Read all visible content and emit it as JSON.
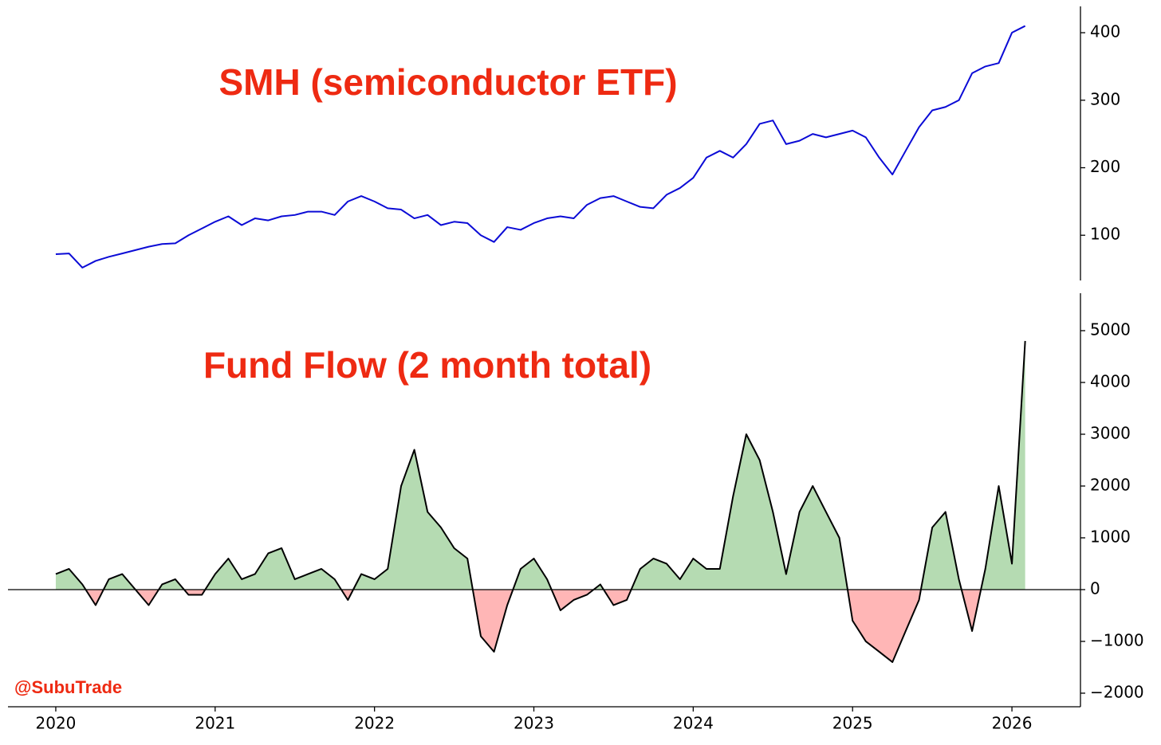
{
  "chart_data": [
    {
      "type": "line",
      "title": "SMH (semiconductor ETF)",
      "color": "#0b0bd6",
      "x": [
        2020,
        2020.083,
        2020.167,
        2020.25,
        2020.333,
        2020.417,
        2020.5,
        2020.583,
        2020.667,
        2020.75,
        2020.833,
        2020.917,
        2021,
        2021.083,
        2021.167,
        2021.25,
        2021.333,
        2021.417,
        2021.5,
        2021.583,
        2021.667,
        2021.75,
        2021.833,
        2021.917,
        2022,
        2022.083,
        2022.167,
        2022.25,
        2022.333,
        2022.417,
        2022.5,
        2022.583,
        2022.667,
        2022.75,
        2022.833,
        2022.917,
        2023,
        2023.083,
        2023.167,
        2023.25,
        2023.333,
        2023.417,
        2023.5,
        2023.583,
        2023.667,
        2023.75,
        2023.833,
        2023.917,
        2024,
        2024.083,
        2024.167,
        2024.25,
        2024.333,
        2024.417,
        2024.5,
        2024.583,
        2024.667,
        2024.75,
        2024.833,
        2024.917,
        2025,
        2025.083,
        2025.167,
        2025.25,
        2025.333,
        2025.417,
        2025.5,
        2025.583,
        2025.667,
        2025.75,
        2025.833,
        2025.917,
        2026,
        2026.083
      ],
      "values": [
        72,
        73,
        52,
        62,
        68,
        73,
        78,
        83,
        87,
        88,
        100,
        110,
        120,
        128,
        115,
        125,
        122,
        128,
        130,
        135,
        135,
        130,
        150,
        158,
        150,
        140,
        138,
        125,
        130,
        115,
        120,
        118,
        100,
        90,
        112,
        108,
        118,
        125,
        128,
        125,
        145,
        155,
        158,
        150,
        142,
        140,
        160,
        170,
        185,
        215,
        225,
        215,
        235,
        265,
        270,
        235,
        240,
        250,
        245,
        250,
        255,
        245,
        215,
        190,
        225,
        260,
        285,
        290,
        300,
        340,
        350,
        355,
        400,
        410
      ],
      "xlim": [
        2019.7,
        2026.43
      ],
      "ylim": [
        33,
        439
      ],
      "yticks": [
        100,
        200,
        300,
        400
      ]
    },
    {
      "type": "area",
      "title": "Fund Flow (2 month total)",
      "annotation": "@SubuTrade",
      "color": "#000000",
      "pos_color": "#b5dbb2",
      "neg_color": "#ffb6b6",
      "x": [
        2020,
        2020.083,
        2020.167,
        2020.25,
        2020.333,
        2020.417,
        2020.5,
        2020.583,
        2020.667,
        2020.75,
        2020.833,
        2020.917,
        2021,
        2021.083,
        2021.167,
        2021.25,
        2021.333,
        2021.417,
        2021.5,
        2021.583,
        2021.667,
        2021.75,
        2021.833,
        2021.917,
        2022,
        2022.083,
        2022.167,
        2022.25,
        2022.333,
        2022.417,
        2022.5,
        2022.583,
        2022.667,
        2022.75,
        2022.833,
        2022.917,
        2023,
        2023.083,
        2023.167,
        2023.25,
        2023.333,
        2023.417,
        2023.5,
        2023.583,
        2023.667,
        2023.75,
        2023.833,
        2023.917,
        2024,
        2024.083,
        2024.167,
        2024.25,
        2024.333,
        2024.417,
        2024.5,
        2024.583,
        2024.667,
        2024.75,
        2024.833,
        2024.917,
        2025,
        2025.083,
        2025.167,
        2025.25,
        2025.333,
        2025.417,
        2025.5,
        2025.583,
        2025.667,
        2025.75,
        2025.833,
        2025.917,
        2026,
        2026.083
      ],
      "values": [
        300,
        400,
        100,
        -300,
        200,
        300,
        0,
        -300,
        100,
        200,
        -100,
        -100,
        300,
        600,
        200,
        300,
        700,
        800,
        200,
        300,
        400,
        200,
        -200,
        300,
        200,
        400,
        2000,
        2700,
        1500,
        1200,
        800,
        600,
        -900,
        -1200,
        -300,
        400,
        600,
        200,
        -400,
        -200,
        -100,
        100,
        -300,
        -200,
        400,
        600,
        500,
        200,
        600,
        400,
        400,
        1800,
        3000,
        2500,
        1500,
        300,
        1500,
        2000,
        1500,
        1000,
        -600,
        -1000,
        -1200,
        -1400,
        -800,
        -200,
        1200,
        1500,
        200,
        -800,
        400,
        2000,
        500,
        4800
      ],
      "xlim": [
        2019.7,
        2026.43
      ],
      "ylim": [
        -2262,
        5723
      ],
      "yticks": [
        {
          "value": -2000,
          "label": "−2000"
        },
        {
          "value": -1000,
          "label": "−1000"
        },
        0,
        1000,
        2000,
        3000,
        4000,
        5000
      ],
      "xticks": [
        2020,
        2021,
        2022,
        2023,
        2024,
        2025,
        2026
      ]
    }
  ]
}
